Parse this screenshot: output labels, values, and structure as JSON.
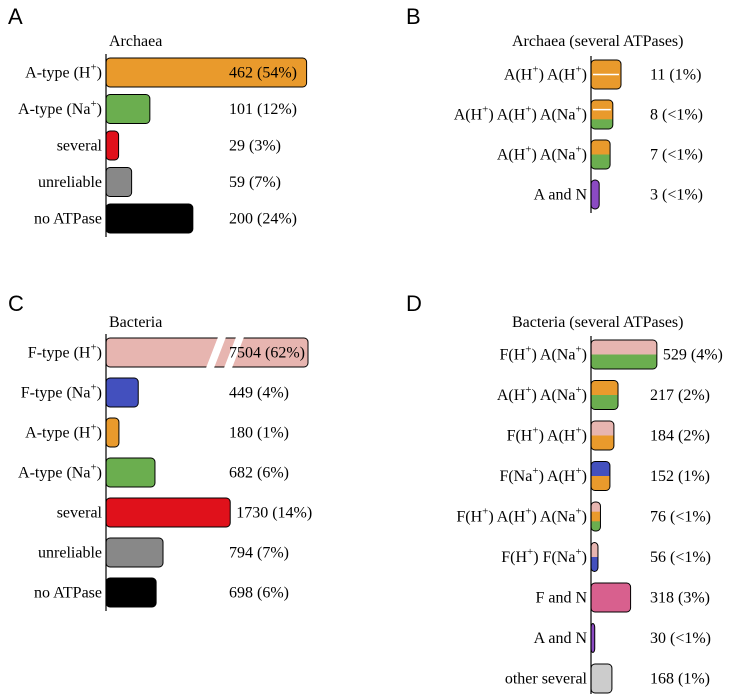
{
  "colors": {
    "orange": "#E99A2C",
    "green": "#6BAE4F",
    "red": "#E0111B",
    "gray": "#888888",
    "black": "#000000",
    "pink": "#E7B5B0",
    "blue": "#4350BE",
    "purple": "#8B4AC2",
    "magenta": "#D8608E",
    "lightgray": "#CCCCCC"
  },
  "chart_data": [
    {
      "type": "bar",
      "panel": "A",
      "title": "Archaea",
      "categories": [
        "A-type (H+)",
        "A-type (Na+)",
        "several",
        "unreliable",
        "no ATPase"
      ],
      "label_parts": [
        [
          {
            "t": "A-type  (H"
          },
          {
            "t": "+",
            "sup": true
          },
          {
            "t": ")"
          }
        ],
        [
          {
            "t": "A-type (Na"
          },
          {
            "t": "+",
            "sup": true
          },
          {
            "t": ")"
          }
        ],
        [
          {
            "t": "several"
          }
        ],
        [
          {
            "t": "unreliable"
          }
        ],
        [
          {
            "t": "no ATPase"
          }
        ]
      ],
      "values": [
        462,
        101,
        29,
        59,
        200
      ],
      "labels": [
        "462 (54%)",
        "101  (12%)",
        "29    (3%)",
        "59    (7%)",
        "200  (24%)"
      ],
      "segments": [
        [
          "orange"
        ],
        [
          "green"
        ],
        [
          "red"
        ],
        [
          "gray"
        ],
        [
          "black"
        ]
      ]
    },
    {
      "type": "bar",
      "panel": "B",
      "title": "Archaea (several ATPases)",
      "categories": [
        "A(H+) A(H+)",
        "A(H+) A(H+) A(Na+)",
        "A(H+) A(Na+)",
        "A and N"
      ],
      "label_parts": [
        [
          {
            "t": "A(H"
          },
          {
            "t": "+",
            "sup": true
          },
          {
            "t": ") A(H"
          },
          {
            "t": "+",
            "sup": true
          },
          {
            "t": ")"
          }
        ],
        [
          {
            "t": "A(H"
          },
          {
            "t": "+",
            "sup": true
          },
          {
            "t": ") A(H"
          },
          {
            "t": "+",
            "sup": true
          },
          {
            "t": ") A(Na"
          },
          {
            "t": "+",
            "sup": true
          },
          {
            "t": ")"
          }
        ],
        [
          {
            "t": "A(H"
          },
          {
            "t": "+",
            "sup": true
          },
          {
            "t": ") A(Na"
          },
          {
            "t": "+",
            "sup": true
          },
          {
            "t": ")"
          }
        ],
        [
          {
            "t": "A and N"
          }
        ]
      ],
      "values": [
        11,
        8,
        7,
        3
      ],
      "labels": [
        "11    (1%)",
        "8   (<1%)",
        "7   (<1%)",
        "3   (<1%)"
      ],
      "segments": [
        [
          "orange",
          "orange"
        ],
        [
          "orange",
          "orange",
          "green"
        ],
        [
          "orange",
          "green"
        ],
        [
          "purple"
        ]
      ]
    },
    {
      "type": "bar",
      "panel": "C",
      "title": "Bacteria",
      "axis_break": true,
      "categories": [
        "F-type (H+)",
        "F-type (Na+)",
        "A-type (H+)",
        "A-type (Na+)",
        "several",
        "unreliable",
        "no ATPase"
      ],
      "label_parts": [
        [
          {
            "t": "F-type    (H"
          },
          {
            "t": "+",
            "sup": true
          },
          {
            "t": ")"
          }
        ],
        [
          {
            "t": "F-type  (Na"
          },
          {
            "t": "+",
            "sup": true
          },
          {
            "t": ")"
          }
        ],
        [
          {
            "t": "A-type     (H"
          },
          {
            "t": "+",
            "sup": true
          },
          {
            "t": ")"
          }
        ],
        [
          {
            "t": "A-type  (Na"
          },
          {
            "t": "+",
            "sup": true
          },
          {
            "t": ")"
          }
        ],
        [
          {
            "t": "several"
          }
        ],
        [
          {
            "t": "unreliable"
          }
        ],
        [
          {
            "t": "no ATPase"
          }
        ]
      ],
      "values": [
        7504,
        449,
        180,
        682,
        1730,
        794,
        698
      ],
      "labels": [
        "7504 (62%)",
        "449   (4%)",
        "180   (1%)",
        "682   (6%)",
        "1730 (14%)",
        "794   (7%)",
        "698   (6%)"
      ],
      "segments": [
        [
          "pink"
        ],
        [
          "blue"
        ],
        [
          "orange"
        ],
        [
          "green"
        ],
        [
          "red"
        ],
        [
          "gray"
        ],
        [
          "black"
        ]
      ]
    },
    {
      "type": "bar",
      "panel": "D",
      "title": "Bacteria (several ATPases)",
      "categories": [
        "F(H+) A(Na+)",
        "A(H+) A(Na+)",
        "F(H+) A(H+)",
        "F(Na+) A(H+)",
        "F(H+) A(H+) A(Na+)",
        "F(H+) F(Na+)",
        "F and N",
        "A and N",
        "other several"
      ],
      "label_parts": [
        [
          {
            "t": "F(H"
          },
          {
            "t": "+",
            "sup": true
          },
          {
            "t": ")     A(Na"
          },
          {
            "t": "+",
            "sup": true
          },
          {
            "t": ")"
          }
        ],
        [
          {
            "t": "A(H"
          },
          {
            "t": "+",
            "sup": true
          },
          {
            "t": ")     A(Na"
          },
          {
            "t": "+",
            "sup": true
          },
          {
            "t": ")"
          }
        ],
        [
          {
            "t": "F(H"
          },
          {
            "t": "+",
            "sup": true
          },
          {
            "t": ")      A(H"
          },
          {
            "t": "+",
            "sup": true
          },
          {
            "t": ")"
          }
        ],
        [
          {
            "t": "F(Na"
          },
          {
            "t": "+",
            "sup": true
          },
          {
            "t": ")    A(H"
          },
          {
            "t": "+",
            "sup": true
          },
          {
            "t": ")"
          }
        ],
        [
          {
            "t": "F(H"
          },
          {
            "t": "+",
            "sup": true
          },
          {
            "t": ") A(H"
          },
          {
            "t": "+",
            "sup": true
          },
          {
            "t": ") A(Na"
          },
          {
            "t": "+",
            "sup": true
          },
          {
            "t": ")"
          }
        ],
        [
          {
            "t": "F(H"
          },
          {
            "t": "+",
            "sup": true
          },
          {
            "t": ")      F(Na"
          },
          {
            "t": "+",
            "sup": true
          },
          {
            "t": ")"
          }
        ],
        [
          {
            "t": "F and N"
          }
        ],
        [
          {
            "t": "A and N"
          }
        ],
        [
          {
            "t": "other  several"
          }
        ]
      ],
      "values": [
        529,
        217,
        184,
        152,
        76,
        56,
        318,
        30,
        168
      ],
      "labels": [
        "529  (4%)",
        "217  (2%)",
        "184  (2%)",
        "152   (1%)",
        "76  (<1%)",
        "56  (<1%)",
        "318  (3%)",
        "30  (<1%)",
        "168  (1%)"
      ],
      "segments": [
        [
          "pink",
          "green"
        ],
        [
          "orange",
          "green"
        ],
        [
          "pink",
          "orange"
        ],
        [
          "blue",
          "orange"
        ],
        [
          "pink",
          "orange",
          "green"
        ],
        [
          "pink",
          "blue"
        ],
        [
          "magenta"
        ],
        [
          "purple"
        ],
        [
          "lightgray"
        ]
      ]
    }
  ]
}
